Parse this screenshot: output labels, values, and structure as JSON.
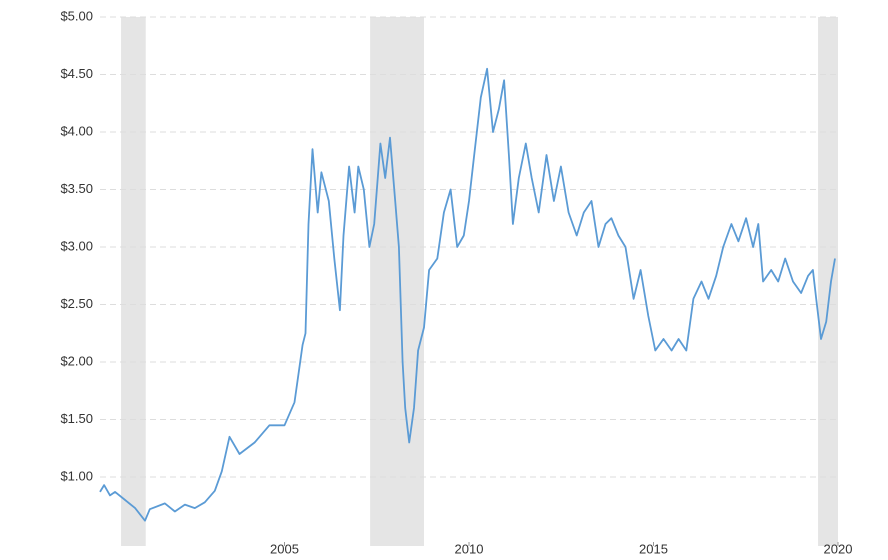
{
  "chart_data": {
    "type": "line",
    "color": "#5b9bd5",
    "grid": true,
    "shade_color": "#e5e5e5",
    "xlim": [
      2000,
      2020
    ],
    "xticks": [
      2005,
      2010,
      2015,
      2020
    ],
    "ylim": [
      0.4,
      5.0
    ],
    "yticks": [
      {
        "value": 1.0,
        "label": "$1.00"
      },
      {
        "value": 1.5,
        "label": "$1.50"
      },
      {
        "value": 2.0,
        "label": "$2.00"
      },
      {
        "value": 2.5,
        "label": "$2.50"
      },
      {
        "value": 3.0,
        "label": "$3.00"
      },
      {
        "value": 3.5,
        "label": "$3.50"
      },
      {
        "value": 4.0,
        "label": "$4.00"
      },
      {
        "value": 4.5,
        "label": "$4.50"
      },
      {
        "value": 5.0,
        "label": "$5.00"
      }
    ],
    "shaded_periods": [
      [
        2000.57,
        2001.24
      ],
      [
        2007.32,
        2008.78
      ],
      [
        2019.46,
        2020.0
      ]
    ],
    "x": [
      2000.0,
      2000.11,
      2000.27,
      2000.41,
      2000.68,
      2000.95,
      2001.22,
      2001.35,
      2001.76,
      2002.03,
      2002.3,
      2002.57,
      2002.84,
      2003.11,
      2003.3,
      2003.51,
      2003.78,
      2004.19,
      2004.59,
      2005.0,
      2005.27,
      2005.49,
      2005.57,
      2005.65,
      2005.76,
      2005.9,
      2006.0,
      2006.2,
      2006.35,
      2006.5,
      2006.6,
      2006.75,
      2006.9,
      2007.0,
      2007.15,
      2007.3,
      2007.43,
      2007.6,
      2007.73,
      2007.86,
      2008.0,
      2008.1,
      2008.2,
      2008.27,
      2008.38,
      2008.51,
      2008.62,
      2008.78,
      2008.92,
      2009.14,
      2009.32,
      2009.5,
      2009.68,
      2009.86,
      2010.0,
      2010.14,
      2010.32,
      2010.49,
      2010.65,
      2010.81,
      2010.95,
      2011.08,
      2011.19,
      2011.35,
      2011.54,
      2011.7,
      2011.89,
      2012.1,
      2012.3,
      2012.49,
      2012.7,
      2012.92,
      2013.11,
      2013.32,
      2013.51,
      2013.7,
      2013.86,
      2014.05,
      2014.24,
      2014.46,
      2014.65,
      2014.86,
      2015.05,
      2015.27,
      2015.49,
      2015.68,
      2015.89,
      2016.08,
      2016.3,
      2016.49,
      2016.7,
      2016.89,
      2017.11,
      2017.3,
      2017.51,
      2017.7,
      2017.84,
      2017.97,
      2018.19,
      2018.38,
      2018.57,
      2018.78,
      2019.0,
      2019.19,
      2019.32,
      2019.41,
      2019.54,
      2019.68,
      2019.81,
      2019.92
    ],
    "values": [
      0.87,
      0.93,
      0.84,
      0.87,
      0.8,
      0.73,
      0.62,
      0.72,
      0.77,
      0.7,
      0.76,
      0.73,
      0.78,
      0.88,
      1.05,
      1.35,
      1.2,
      1.3,
      1.45,
      1.45,
      1.65,
      2.15,
      2.25,
      3.2,
      3.85,
      3.3,
      3.65,
      3.4,
      2.9,
      2.45,
      3.1,
      3.7,
      3.3,
      3.7,
      3.5,
      3.0,
      3.2,
      3.9,
      3.6,
      3.95,
      3.4,
      3.0,
      2.0,
      1.6,
      1.3,
      1.6,
      2.1,
      2.3,
      2.8,
      2.9,
      3.3,
      3.5,
      3.0,
      3.1,
      3.4,
      3.8,
      4.3,
      4.55,
      4.0,
      4.2,
      4.45,
      3.8,
      3.2,
      3.6,
      3.9,
      3.6,
      3.3,
      3.8,
      3.4,
      3.7,
      3.3,
      3.1,
      3.3,
      3.4,
      3.0,
      3.2,
      3.25,
      3.1,
      3.0,
      2.55,
      2.8,
      2.4,
      2.1,
      2.2,
      2.1,
      2.2,
      2.1,
      2.55,
      2.7,
      2.55,
      2.75,
      3.0,
      3.2,
      3.05,
      3.25,
      3.0,
      3.2,
      2.7,
      2.8,
      2.7,
      2.9,
      2.7,
      2.6,
      2.75,
      2.8,
      2.55,
      2.2,
      2.35,
      2.7,
      2.9
    ]
  }
}
